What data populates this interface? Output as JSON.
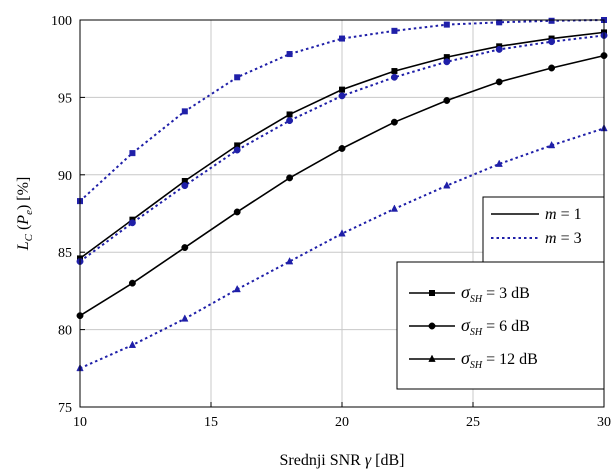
{
  "chart_data": {
    "type": "line",
    "xlabel_text": "Srednji SNR ",
    "xlabel_symbol": "γ",
    "xlabel_unit": " [dB]",
    "ylabel_main": "L",
    "ylabel_sub": "C",
    "ylabel_paren_open": " (",
    "ylabel_P": "P",
    "ylabel_P_sub": "e",
    "ylabel_paren_close": ")",
    "ylabel_unit": " [%]",
    "xlim": [
      10,
      30
    ],
    "ylim": [
      75,
      100
    ],
    "x_ticks": [
      10,
      15,
      20,
      25,
      30
    ],
    "y_ticks": [
      75,
      80,
      85,
      90,
      95,
      100
    ],
    "grid": true,
    "x": [
      10,
      12,
      14,
      16,
      18,
      20,
      22,
      24,
      26,
      28,
      30
    ],
    "series": [
      {
        "m": "1",
        "sigma": "3 dB",
        "marker": "square",
        "values": [
          84.6,
          87.1,
          89.6,
          91.9,
          93.9,
          95.5,
          96.7,
          97.6,
          98.3,
          98.8,
          99.2
        ]
      },
      {
        "m": "1",
        "sigma": "6 dB",
        "marker": "circle",
        "values": [
          80.9,
          83.0,
          85.3,
          87.6,
          89.8,
          91.7,
          93.4,
          94.8,
          96.0,
          96.9,
          97.7
        ]
      },
      {
        "m": "1",
        "sigma": "12 dB",
        "marker": "triangle",
        "values": null
      },
      {
        "m": "3",
        "sigma": "3 dB",
        "marker": "square",
        "values": [
          88.3,
          91.4,
          94.1,
          96.3,
          97.8,
          98.8,
          99.3,
          99.7,
          99.85,
          99.95,
          100.0
        ]
      },
      {
        "m": "3",
        "sigma": "6 dB",
        "marker": "circle",
        "values": [
          84.4,
          86.9,
          89.3,
          91.6,
          93.5,
          95.1,
          96.3,
          97.3,
          98.1,
          98.6,
          99.0
        ]
      },
      {
        "m": "3",
        "sigma": "12 dB",
        "marker": "triangle",
        "values": [
          77.5,
          79.0,
          80.7,
          82.6,
          84.4,
          86.2,
          87.8,
          89.3,
          90.7,
          91.9,
          93.0
        ]
      }
    ],
    "legend_m": [
      {
        "symbol": "m",
        "eq": " = 1",
        "style": "solid"
      },
      {
        "symbol": "m",
        "eq": " = 3",
        "style": "dotted"
      }
    ],
    "legend_sigma": [
      {
        "symbol": "σ",
        "sub": "SH",
        "eq": " = 3 dB",
        "marker": "square"
      },
      {
        "symbol": "σ",
        "sub": "SH",
        "eq": " = 6 dB",
        "marker": "circle"
      },
      {
        "symbol": "σ",
        "sub": "SH",
        "eq": " = 12 dB",
        "marker": "triangle"
      }
    ],
    "colors": {
      "solid": "#000000",
      "dotted": "#1f1fa8",
      "marker_dotted": "#1f1fa8",
      "grid": "#c8c8c8"
    }
  }
}
